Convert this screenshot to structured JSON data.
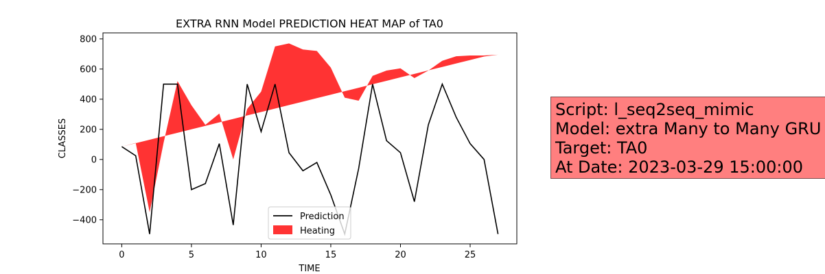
{
  "chart_data": {
    "type": "line",
    "title": "EXTRA RNN Model PREDICTION HEAT MAP of TA0",
    "xlabel": "TIME",
    "ylabel": "CLASSES",
    "xlim": [
      -1.35,
      28.35
    ],
    "ylim": [
      -560,
      840
    ],
    "xticks": [
      0,
      5,
      10,
      15,
      20,
      25
    ],
    "yticks": [
      -400,
      -200,
      0,
      200,
      400,
      600,
      800
    ],
    "x": [
      0,
      1,
      2,
      3,
      4,
      5,
      6,
      7,
      8,
      9,
      10,
      11,
      12,
      13,
      14,
      15,
      16,
      17,
      18,
      19,
      20,
      21,
      22,
      23,
      24,
      25,
      26,
      27
    ],
    "series": [
      {
        "name": "Prediction",
        "type": "line",
        "color": "#000000",
        "values": [
          85,
          25,
          -495,
          500,
          500,
          -200,
          -160,
          105,
          -435,
          500,
          185,
          500,
          45,
          -75,
          -20,
          -235,
          -495,
          -60,
          500,
          125,
          45,
          -280,
          230,
          500,
          280,
          105,
          0,
          -495
        ]
      },
      {
        "name": "Heating",
        "type": "area_between",
        "color": "#ff0000",
        "upper_edge": [
          85,
          110,
          -350,
          110,
          520,
          360,
          230,
          305,
          0,
          335,
          450,
          750,
          770,
          730,
          720,
          610,
          410,
          390,
          555,
          590,
          605,
          540,
          590,
          655,
          685,
          690,
          690,
          695
        ],
        "lower_edge": [
          85,
          108,
          131,
          154,
          177,
          200,
          223,
          246,
          269,
          292,
          315,
          338,
          361,
          384,
          407,
          430,
          453,
          476,
          499,
          522,
          545,
          568,
          591,
          614,
          637,
          660,
          683,
          695
        ]
      }
    ],
    "legend": {
      "position": "bottom-center",
      "entries": [
        "Prediction",
        "Heating"
      ]
    }
  },
  "info_box": {
    "lines": [
      "Script: l_seq2seq_mimic",
      "Model: extra Many to Many GRU",
      "Target: TA0",
      "At Date: 2023-03-29 15:00:00"
    ],
    "background": "#ff7f7f"
  }
}
